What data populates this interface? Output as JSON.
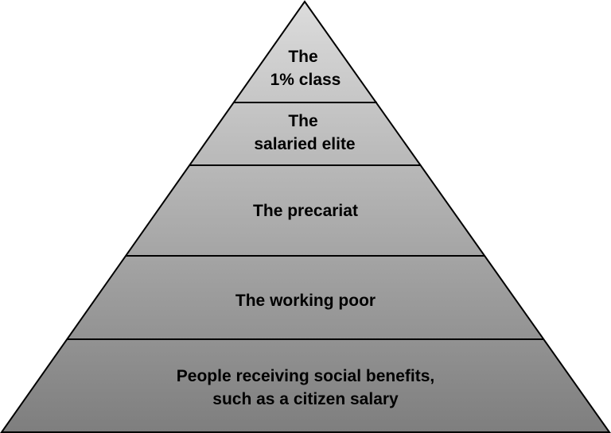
{
  "diagram": {
    "type": "pyramid",
    "colors": {
      "fill_top": "#dcdcdc",
      "fill_bottom": "#7e7e7e",
      "stroke": "#000000",
      "text": "#000000"
    },
    "tiers": [
      {
        "lines": [
          "The",
          "1% class"
        ]
      },
      {
        "lines": [
          "The",
          "salaried elite"
        ]
      },
      {
        "lines": [
          "The precariat"
        ]
      },
      {
        "lines": [
          "The working poor"
        ]
      },
      {
        "lines": [
          "People receiving social benefits,",
          "such as a citizen salary"
        ]
      }
    ]
  }
}
